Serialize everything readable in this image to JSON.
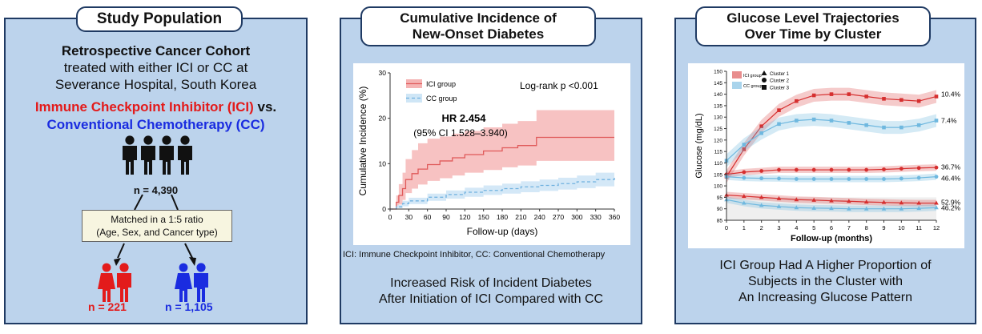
{
  "panels": {
    "study_population": {
      "title": "Study Population",
      "line1": "Retrospective Cancer Cohort",
      "line2": "treated with either ICI or CC at",
      "line3": "Severance Hospital, South Korea",
      "ici_label": "Immune Checkpoint Inhibitor (ICI)",
      "vs": "vs.",
      "cc_label": "Conventional Chemotherapy (CC)",
      "n_total": "n = 4,390",
      "match_line1": "Matched in a 1:5 ratio",
      "match_line2": "(Age, Sex, and Cancer type)",
      "n_ici": "n = 221",
      "n_cc": "n = 1,105",
      "colors": {
        "ici": "#e31b1b",
        "cc": "#1a2ce0",
        "people": "#111111"
      }
    },
    "incidence": {
      "title_line1": "Cumulative Incidence of",
      "title_line2": "New-Onset Diabetes",
      "footnote": "ICI:  Immune Checkpoint Inhibitor, CC:  Conventional Chemotherapy",
      "conclusion_line1": "Increased Risk of Incident Diabetes",
      "conclusion_line2": "After Initiation of ICI Compared with CC"
    },
    "glucose": {
      "title_line1": "Glucose Level Trajectories",
      "title_line2": "Over Time by Cluster",
      "conclusion_line1": "ICI Group Had A Higher Proportion of",
      "conclusion_line2": "Subjects in the Cluster with",
      "conclusion_line3": "An Increasing Glucose Pattern"
    }
  },
  "chart_data": [
    {
      "type": "line",
      "xlabel": "Follow-up (days)",
      "ylabel": "Cumulative Incidence (%)",
      "xlim": [
        0,
        360
      ],
      "ylim": [
        0,
        30
      ],
      "x_ticks": [
        0,
        30,
        60,
        90,
        120,
        150,
        180,
        210,
        240,
        270,
        300,
        330,
        360
      ],
      "y_ticks": [
        0,
        10,
        20,
        30
      ],
      "legend": [
        "ICI group",
        "CC group"
      ],
      "annotation_logrank": "Log-rank p <0.001",
      "annotation_hr": "HR 2.454",
      "annotation_ci": "(95% CI 1.528–3.940)",
      "series": [
        {
          "name": "ICI group",
          "color": "#e05a5a",
          "band": "#f5b3b3",
          "x": [
            0,
            10,
            14,
            20,
            25,
            35,
            45,
            60,
            80,
            100,
            120,
            150,
            180,
            205,
            235,
            275,
            360
          ],
          "values": [
            0,
            1.5,
            3,
            4.5,
            6.5,
            7.8,
            8.8,
            9.8,
            10.6,
            11.3,
            12,
            12.8,
            13.5,
            14,
            15.8,
            15.8,
            15.8
          ],
          "lower": [
            0,
            0.3,
            1,
            2,
            3.5,
            4.5,
            5.4,
            6.2,
            6.8,
            7.4,
            8,
            8.6,
            9.2,
            9.6,
            10.6,
            10.6,
            10.6
          ],
          "upper": [
            0,
            3,
            5.5,
            8,
            11,
            13,
            14.5,
            15.5,
            16,
            16.6,
            17.2,
            18,
            18.8,
            19.4,
            21.8,
            21.8,
            21.8
          ]
        },
        {
          "name": "CC group",
          "color": "#6fb1df",
          "band": "#cfe6f6",
          "x": [
            0,
            10,
            20,
            30,
            60,
            90,
            120,
            150,
            180,
            210,
            240,
            270,
            300,
            330,
            360
          ],
          "values": [
            0,
            0.5,
            1.2,
            1.8,
            2.6,
            3.2,
            3.7,
            4.1,
            4.5,
            4.9,
            5.2,
            5.6,
            6,
            6.5,
            7
          ],
          "lower": [
            0,
            0.2,
            0.6,
            1.1,
            1.8,
            2.3,
            2.7,
            3.1,
            3.4,
            3.7,
            4,
            4.3,
            4.6,
            5,
            5.3
          ],
          "upper": [
            0,
            0.9,
            1.8,
            2.5,
            3.4,
            4.1,
            4.7,
            5.2,
            5.6,
            6.1,
            6.5,
            6.9,
            7.4,
            8,
            8.7
          ]
        }
      ]
    },
    {
      "type": "line",
      "xlabel": "Follow-up (months)",
      "ylabel": "Glucose (mg/dL)",
      "xlim": [
        0,
        12
      ],
      "ylim": [
        85,
        150
      ],
      "x_ticks": [
        0,
        1,
        2,
        3,
        4,
        5,
        6,
        7,
        8,
        9,
        10,
        11,
        12
      ],
      "y_ticks": [
        85,
        90,
        95,
        100,
        105,
        110,
        115,
        120,
        125,
        130,
        135,
        140,
        145,
        150
      ],
      "legend_groups": [
        "ICI group",
        "CC group"
      ],
      "legend_clusters": [
        "Cluster 1",
        "Cluster 2",
        "Cluster 3"
      ],
      "series": [
        {
          "name": "ICI group",
          "cluster": "Cluster 3",
          "color": "#d62f2f",
          "marker": "square",
          "end_label": "10.4%",
          "x": [
            0,
            1,
            2,
            3,
            4,
            5,
            6,
            7,
            8,
            9,
            10,
            11,
            12
          ],
          "values": [
            104,
            116,
            126,
            133,
            137,
            139.5,
            140,
            140,
            139,
            138,
            137.5,
            137,
            139
          ]
        },
        {
          "name": "CC group",
          "cluster": "Cluster 3",
          "color": "#6fb8df",
          "marker": "square",
          "end_label": "7.4%",
          "x": [
            0,
            1,
            2,
            3,
            4,
            5,
            6,
            7,
            8,
            9,
            10,
            11,
            12
          ],
          "values": [
            111,
            118,
            123,
            127,
            128.5,
            129,
            128.5,
            127.5,
            126.5,
            125.5,
            125.5,
            126.5,
            128.5
          ]
        },
        {
          "name": "ICI group",
          "cluster": "Cluster 2",
          "color": "#d62f2f",
          "marker": "circle",
          "end_label": "36.7%",
          "x": [
            0,
            1,
            2,
            3,
            4,
            5,
            6,
            7,
            8,
            9,
            10,
            11,
            12
          ],
          "values": [
            105,
            106,
            106.5,
            107,
            107,
            107,
            107,
            107,
            107,
            107.2,
            107.5,
            107.8,
            108
          ]
        },
        {
          "name": "CC group",
          "cluster": "Cluster 2",
          "color": "#6fb8df",
          "marker": "circle",
          "end_label": "46.4%",
          "x": [
            0,
            1,
            2,
            3,
            4,
            5,
            6,
            7,
            8,
            9,
            10,
            11,
            12
          ],
          "values": [
            104,
            103.5,
            103.3,
            103.2,
            103,
            103,
            103,
            103,
            103,
            103,
            103.2,
            103.5,
            104
          ]
        },
        {
          "name": "ICI group",
          "cluster": "Cluster 1",
          "color": "#d62f2f",
          "marker": "triangle",
          "end_label": "52.9%",
          "x": [
            0,
            1,
            2,
            3,
            4,
            5,
            6,
            7,
            8,
            9,
            10,
            11,
            12
          ],
          "values": [
            96,
            95.5,
            95,
            94.5,
            94,
            93.8,
            93.5,
            93.3,
            93,
            92.8,
            92.6,
            92.5,
            92.5
          ]
        },
        {
          "name": "CC group",
          "cluster": "Cluster 1",
          "color": "#6fb8df",
          "marker": "triangle",
          "end_label": "46.2%",
          "x": [
            0,
            1,
            2,
            3,
            4,
            5,
            6,
            7,
            8,
            9,
            10,
            11,
            12
          ],
          "values": [
            94,
            92.5,
            91.5,
            91,
            90.5,
            90.3,
            90.2,
            90,
            90,
            90,
            90,
            90.2,
            90.5
          ]
        }
      ]
    }
  ]
}
